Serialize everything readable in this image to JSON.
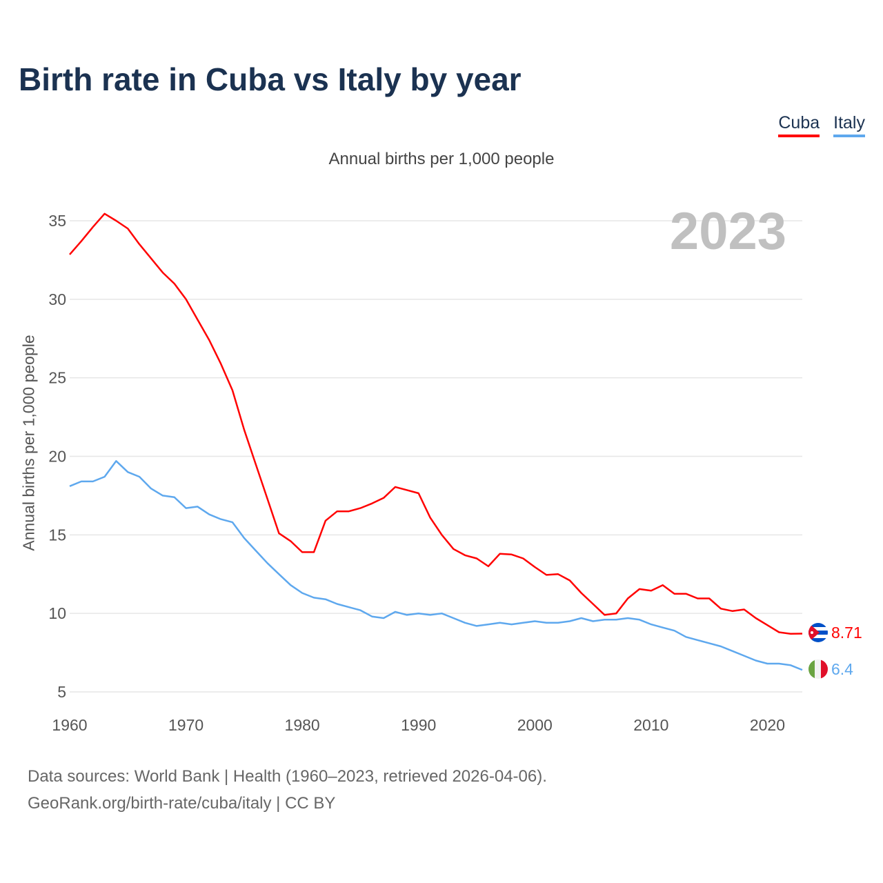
{
  "title": "Birth rate in Cuba vs Italy by year",
  "subtitle": "Annual births per 1,000 people",
  "current_year_label": "2023",
  "source_line1": "Data sources: World Bank | Health (1960–2023, retrieved 2026-04-06).",
  "source_line2": "GeoRank.org/birth-rate/cuba/italy | CC BY",
  "chart_data": {
    "type": "line",
    "title": "Birth rate in Cuba vs Italy by year",
    "xlabel": "",
    "ylabel": "Annual births per 1,000 people",
    "xlim": [
      1960,
      2023
    ],
    "ylim": [
      5,
      35
    ],
    "x_ticks": [
      1960,
      1970,
      1980,
      1990,
      2000,
      2010,
      2020
    ],
    "y_ticks": [
      5,
      10,
      15,
      20,
      25,
      30,
      35
    ],
    "grid": true,
    "legend_position": "top-right",
    "x_start": 1960,
    "series": [
      {
        "name": "Cuba",
        "color": "#ff0000",
        "end_label": "8.71",
        "flag-icon": "cuba-flag-icon",
        "values": [
          32.85,
          33.7,
          34.6,
          35.45,
          35.0,
          34.5,
          33.5,
          32.6,
          31.7,
          31.0,
          30.0,
          28.7,
          27.4,
          25.9,
          24.2,
          21.7,
          19.5,
          17.3,
          15.1,
          14.6,
          13.9,
          13.9,
          15.9,
          16.5,
          16.5,
          16.7,
          17.0,
          17.35,
          18.05,
          17.85,
          17.65,
          16.1,
          15.0,
          14.1,
          13.7,
          13.5,
          13.0,
          13.8,
          13.75,
          13.5,
          12.95,
          12.45,
          12.5,
          12.1,
          11.3,
          10.6,
          9.9,
          10.0,
          10.95,
          11.55,
          11.45,
          11.8,
          11.25,
          11.25,
          10.95,
          10.95,
          10.3,
          10.15,
          10.25,
          9.7,
          9.25,
          8.8,
          8.7,
          8.71
        ]
      },
      {
        "name": "Italy",
        "color": "#5ea8ee",
        "end_label": "6.4",
        "flag-icon": "italy-flag-icon",
        "values": [
          18.1,
          18.4,
          18.4,
          18.7,
          19.7,
          19.0,
          18.7,
          17.95,
          17.5,
          17.4,
          16.7,
          16.8,
          16.3,
          16.0,
          15.8,
          14.8,
          14.0,
          13.2,
          12.5,
          11.8,
          11.3,
          11.0,
          10.9,
          10.6,
          10.4,
          10.2,
          9.8,
          9.7,
          10.1,
          9.9,
          10.0,
          9.9,
          10.0,
          9.7,
          9.4,
          9.2,
          9.3,
          9.4,
          9.3,
          9.4,
          9.5,
          9.4,
          9.4,
          9.5,
          9.7,
          9.5,
          9.6,
          9.6,
          9.7,
          9.6,
          9.3,
          9.1,
          8.9,
          8.5,
          8.3,
          8.1,
          7.9,
          7.6,
          7.3,
          7.0,
          6.8,
          6.8,
          6.7,
          6.4
        ]
      }
    ]
  }
}
